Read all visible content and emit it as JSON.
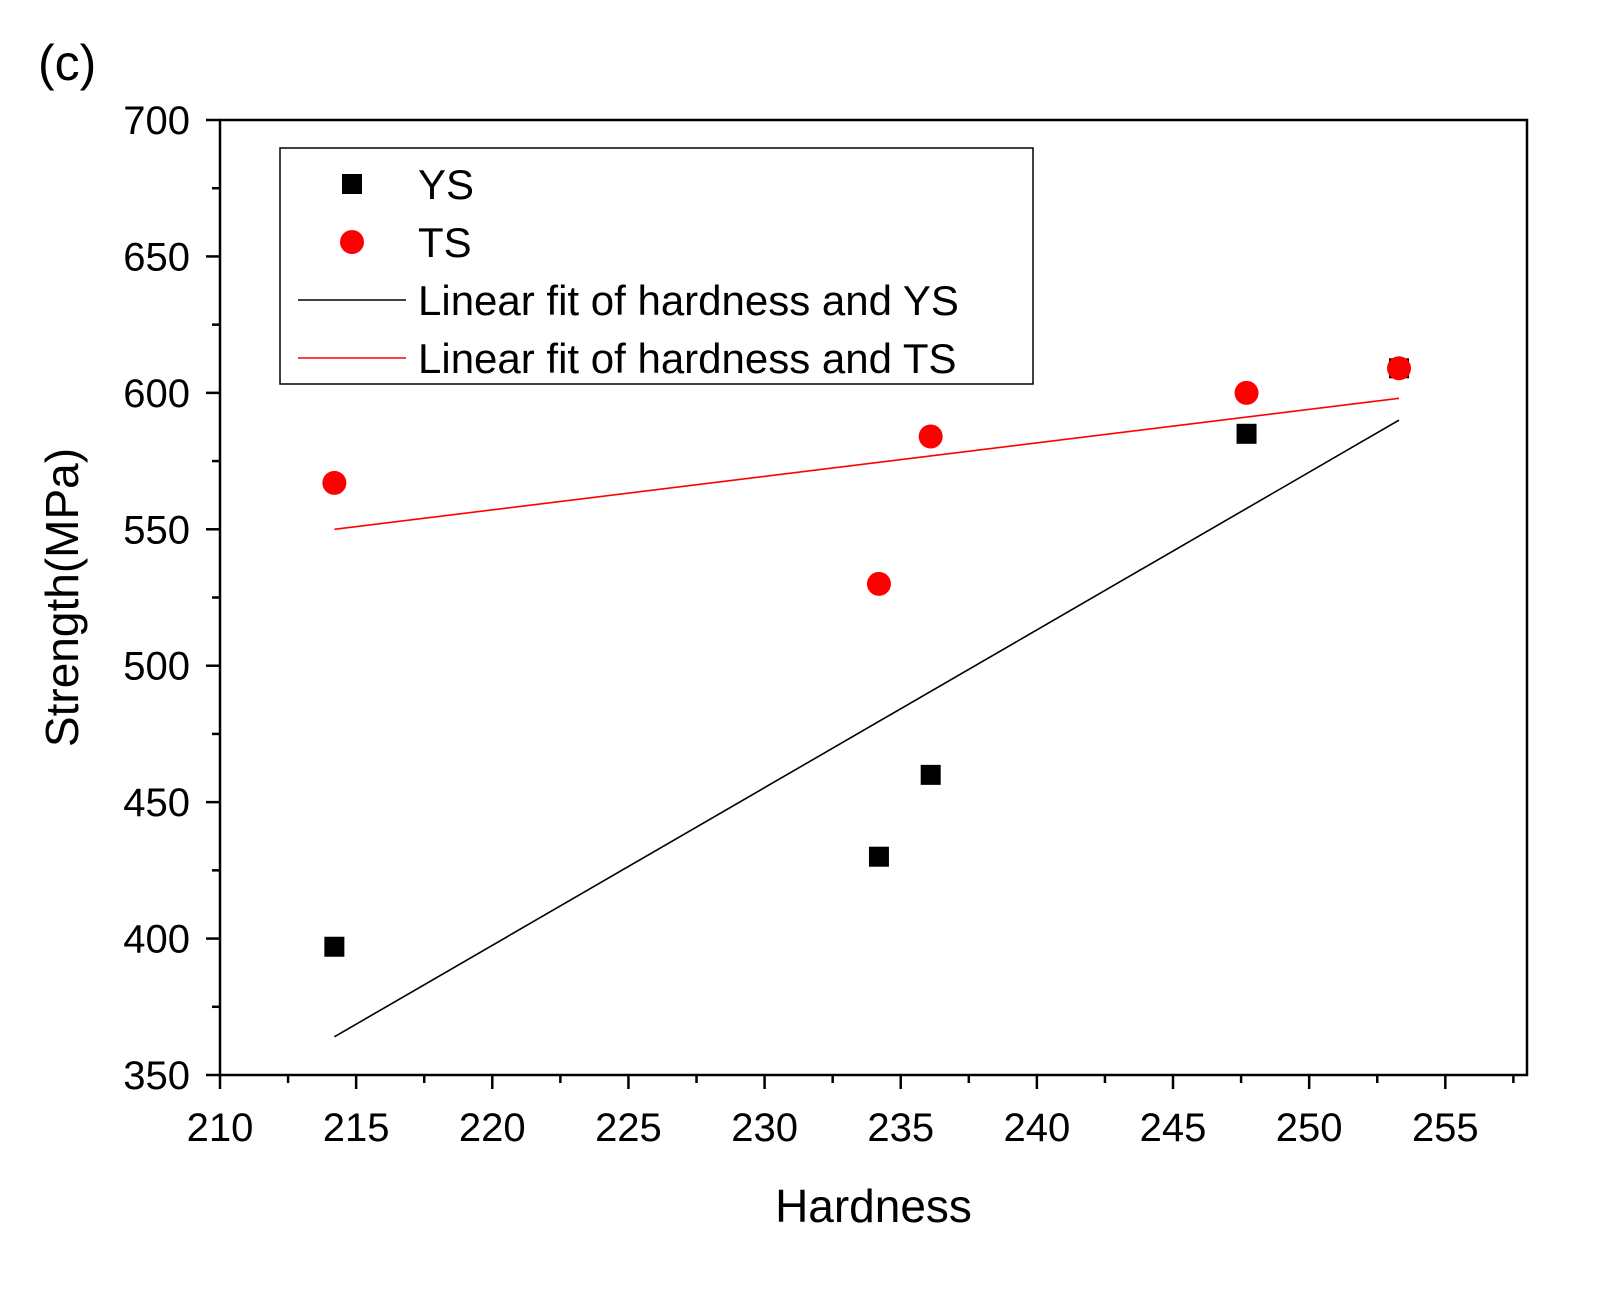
{
  "chart_data": {
    "type": "scatter",
    "panel_label": "(c)",
    "xlabel": "Hardness",
    "ylabel": "Strength(MPa)",
    "xlim": [
      210,
      258
    ],
    "ylim": [
      350,
      700
    ],
    "x_ticks": [
      210,
      215,
      220,
      225,
      230,
      235,
      240,
      245,
      250,
      255
    ],
    "y_ticks": [
      350,
      400,
      450,
      500,
      550,
      600,
      650,
      700
    ],
    "x_minor_step": 2.5,
    "y_minor_step": 25,
    "legend_position": "top-left",
    "series": [
      {
        "name": "YS",
        "kind": "scatter",
        "marker": "square",
        "color": "#000000",
        "points": [
          {
            "x": 214.2,
            "y": 397
          },
          {
            "x": 234.2,
            "y": 430
          },
          {
            "x": 236.1,
            "y": 460
          },
          {
            "x": 247.7,
            "y": 585
          },
          {
            "x": 253.3,
            "y": 609
          }
        ]
      },
      {
        "name": "TS",
        "kind": "scatter",
        "marker": "circle",
        "color": "#ff0000",
        "points": [
          {
            "x": 214.2,
            "y": 567
          },
          {
            "x": 234.2,
            "y": 530
          },
          {
            "x": 236.1,
            "y": 584
          },
          {
            "x": 247.7,
            "y": 600
          },
          {
            "x": 253.3,
            "y": 609
          }
        ]
      },
      {
        "name": "Linear fit of hardness and YS",
        "kind": "line",
        "color": "#000000",
        "points": [
          {
            "x": 214.2,
            "y": 364
          },
          {
            "x": 253.3,
            "y": 590
          }
        ]
      },
      {
        "name": "Linear fit of hardness and TS",
        "kind": "line",
        "color": "#ff0000",
        "points": [
          {
            "x": 214.2,
            "y": 550
          },
          {
            "x": 253.3,
            "y": 598
          }
        ]
      }
    ]
  }
}
